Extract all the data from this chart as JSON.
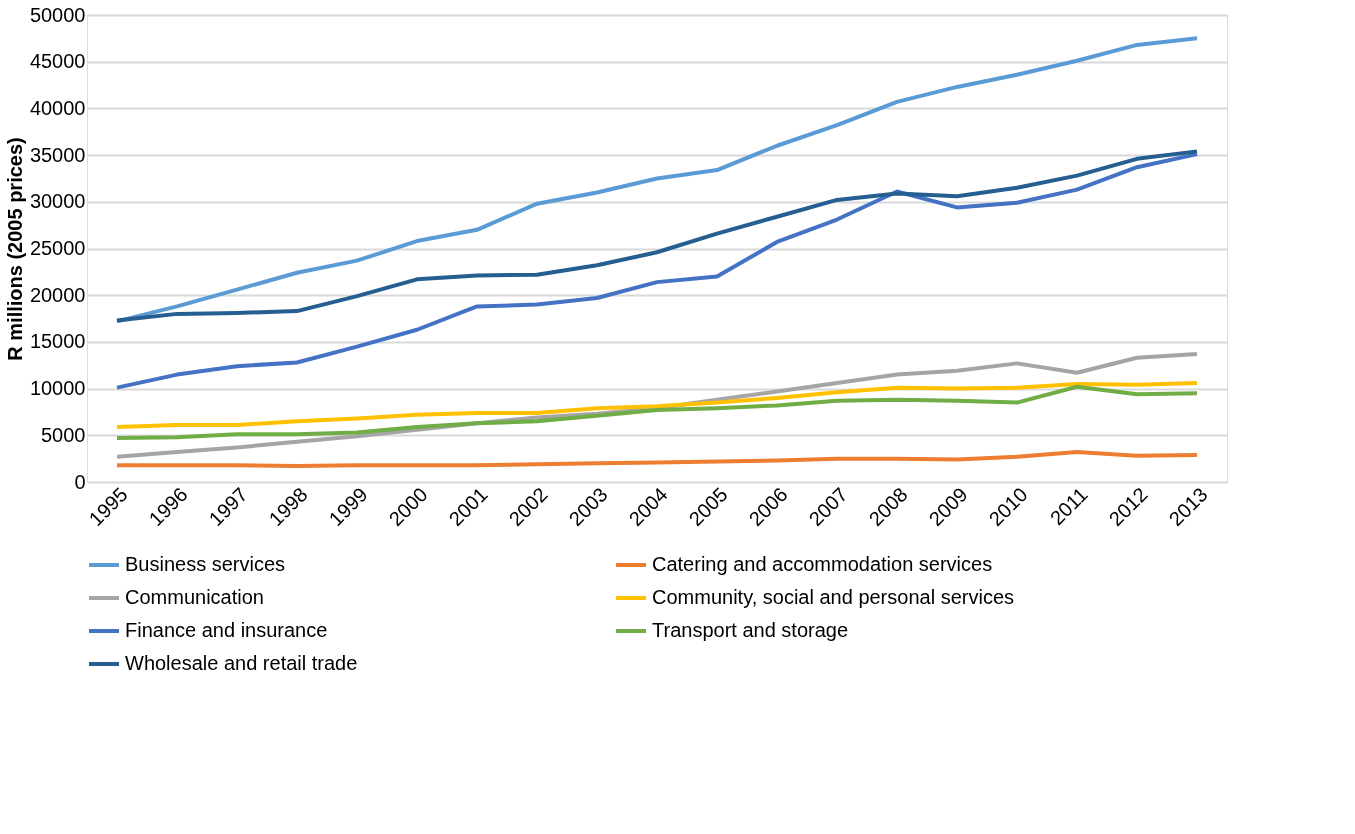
{
  "chart_data": {
    "type": "line",
    "ylabel": "R millions (2005 prices)",
    "categories": [
      "1995",
      "1996",
      "1997",
      "1998",
      "1999",
      "2000",
      "2001",
      "2002",
      "2003",
      "2004",
      "2005",
      "2006",
      "2007",
      "2008",
      "2009",
      "2010",
      "2011",
      "2012",
      "2013"
    ],
    "ylim": [
      0,
      50000
    ],
    "yticks": [
      0,
      5000,
      10000,
      15000,
      20000,
      25000,
      30000,
      35000,
      40000,
      45000,
      50000
    ],
    "grid": "y",
    "legend": "bottom",
    "marker": "none",
    "line_style": "solid",
    "series": [
      {
        "name": "Business services",
        "color": "#5b9bd5",
        "values": [
          17200,
          18800,
          20600,
          22400,
          23700,
          25800,
          27000,
          29800,
          31000,
          32500,
          33400,
          36000,
          38200,
          40700,
          42300,
          43600,
          45100,
          46800,
          47500
        ]
      },
      {
        "name": "Catering and accommodation services",
        "color": "#ed7d31",
        "values": [
          1800,
          1800,
          1800,
          1700,
          1800,
          1800,
          1800,
          1900,
          2000,
          2100,
          2200,
          2300,
          2500,
          2500,
          2400,
          2700,
          3200,
          2800,
          2900
        ]
      },
      {
        "name": "Communication",
        "color": "#a5a5a5",
        "values": [
          2700,
          3200,
          3700,
          4300,
          4900,
          5600,
          6300,
          6900,
          7300,
          7900,
          8800,
          9700,
          10600,
          11500,
          11900,
          12700,
          11700,
          13300,
          13700
        ]
      },
      {
        "name": "Community, social and personal services",
        "color": "#ffc000",
        "values": [
          5900,
          6100,
          6100,
          6500,
          6800,
          7200,
          7400,
          7400,
          7900,
          8100,
          8500,
          9000,
          9600,
          10100,
          10000,
          10100,
          10500,
          10400,
          10600
        ]
      },
      {
        "name": "Finance and insurance",
        "color": "#4472c4",
        "values": [
          10100,
          11500,
          12400,
          12800,
          14500,
          16300,
          18800,
          19000,
          19700,
          21400,
          22000,
          25700,
          28100,
          31100,
          29400,
          29900,
          31300,
          33700,
          35100
        ]
      },
      {
        "name": "Transport and storage",
        "color": "#70ad47",
        "values": [
          4700,
          4800,
          5100,
          5100,
          5300,
          5900,
          6300,
          6500,
          7100,
          7700,
          7900,
          8200,
          8700,
          8800,
          8700,
          8500,
          10200,
          9400,
          9500
        ]
      },
      {
        "name": "Wholesale and retail trade",
        "color": "#255e91",
        "values": [
          17300,
          18000,
          18100,
          18300,
          19900,
          21700,
          22100,
          22200,
          23200,
          24600,
          26600,
          28400,
          30200,
          30900,
          30600,
          31500,
          32800,
          34600,
          35400
        ]
      }
    ]
  }
}
